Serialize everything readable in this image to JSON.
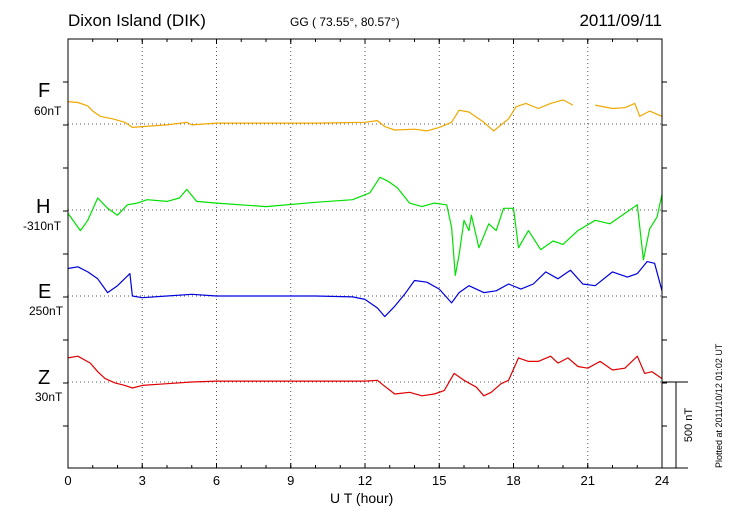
{
  "header": {
    "station": "Dixon Island (DIK)",
    "coords": "GG ( 73.55°,  80.57°)",
    "date": "2011/09/11"
  },
  "footnote": "Plotted at 2011/10/12 01:02 UT",
  "chart_data": {
    "type": "line",
    "xlabel": "U T (hour)",
    "xlim": [
      0,
      24
    ],
    "xticks": [
      "0",
      "3",
      "6",
      "9",
      "12",
      "15",
      "18",
      "21",
      "24"
    ],
    "grid": true,
    "scale_bar": {
      "label": "500 nT",
      "value_nT": 500
    },
    "series": [
      {
        "name": "F",
        "baseline": "60nT",
        "color": "#f0a800",
        "x": [
          0,
          0.4,
          0.8,
          1.0,
          1.3,
          1.8,
          2.3,
          2.6,
          3.0,
          4.0,
          4.8,
          5.0,
          6.0,
          8.0,
          10.0,
          12.0,
          12.5,
          12.8,
          13.2,
          14.0,
          14.5,
          15.0,
          15.5,
          15.8,
          16.2,
          16.5,
          16.8,
          17.2,
          17.8,
          18.1,
          18.5,
          19.0,
          19.5,
          20.0,
          20.4,
          20.9,
          21.3,
          22.0,
          22.5,
          22.9,
          23.1,
          23.5,
          24.0
        ],
        "y": [
          130,
          125,
          105,
          75,
          45,
          30,
          10,
          -20,
          -15,
          -5,
          10,
          -5,
          5,
          5,
          5,
          10,
          20,
          -15,
          -35,
          -30,
          -40,
          -20,
          10,
          80,
          70,
          40,
          10,
          -40,
          30,
          100,
          120,
          90,
          120,
          140,
          110,
          null,
          110,
          90,
          95,
          120,
          45,
          75,
          45
        ]
      },
      {
        "name": "H",
        "baseline": "-310nT",
        "color": "#00e000",
        "x": [
          0,
          0.5,
          0.8,
          1.2,
          1.6,
          2.0,
          2.4,
          2.8,
          3.2,
          4.0,
          4.5,
          4.8,
          5.2,
          6.0,
          8.0,
          10.0,
          11.5,
          12.2,
          12.6,
          12.9,
          13.3,
          13.8,
          14.3,
          14.8,
          15.3,
          15.5,
          15.65,
          15.8,
          16.0,
          16.2,
          16.3,
          16.6,
          17.0,
          17.3,
          17.6,
          18.0,
          18.2,
          18.6,
          19.1,
          19.6,
          20.0,
          20.6,
          21.3,
          21.9,
          22.5,
          23.0,
          23.25,
          23.5,
          23.8,
          24.0
        ],
        "y": [
          -20,
          -120,
          -60,
          70,
          10,
          -30,
          30,
          40,
          60,
          50,
          70,
          120,
          50,
          40,
          20,
          45,
          60,
          100,
          190,
          170,
          130,
          40,
          20,
          40,
          30,
          -100,
          -380,
          -260,
          -60,
          -120,
          -30,
          -220,
          -80,
          -120,
          10,
          10,
          -220,
          -120,
          -230,
          -180,
          -200,
          -120,
          -60,
          -80,
          -20,
          30,
          -290,
          -110,
          -40,
          90
        ]
      },
      {
        "name": "E",
        "baseline": "250nT",
        "color": "#0000dd",
        "x": [
          0,
          0.4,
          0.8,
          1.2,
          1.6,
          2.0,
          2.5,
          2.6,
          3.0,
          4.0,
          5.0,
          6.0,
          8.0,
          10.0,
          11.5,
          12.0,
          12.5,
          12.8,
          13.2,
          13.6,
          14.0,
          14.5,
          15.0,
          15.5,
          15.8,
          16.2,
          16.8,
          17.3,
          17.8,
          18.3,
          18.8,
          19.3,
          19.8,
          20.3,
          20.8,
          21.3,
          22.0,
          22.6,
          23.0,
          23.4,
          23.7,
          24.0
        ],
        "y": [
          160,
          170,
          140,
          100,
          20,
          60,
          130,
          0,
          -10,
          0,
          10,
          0,
          0,
          0,
          -5,
          -20,
          -70,
          -120,
          -60,
          10,
          90,
          80,
          40,
          -40,
          20,
          60,
          20,
          30,
          70,
          40,
          70,
          140,
          100,
          150,
          70,
          60,
          140,
          110,
          130,
          200,
          190,
          30
        ]
      },
      {
        "name": "Z",
        "baseline": "30nT",
        "color": "#e00000",
        "x": [
          0,
          0.4,
          0.9,
          1.2,
          1.5,
          1.9,
          2.3,
          2.6,
          3.0,
          4.0,
          5.0,
          6.0,
          8.0,
          10.0,
          12.0,
          12.5,
          12.8,
          13.2,
          13.8,
          14.3,
          14.8,
          15.2,
          15.6,
          16.0,
          16.5,
          16.8,
          17.1,
          17.5,
          17.8,
          18.2,
          18.6,
          19.0,
          19.5,
          19.8,
          20.2,
          20.6,
          21.0,
          21.5,
          22.0,
          22.5,
          23.0,
          23.3,
          23.6,
          24.0
        ],
        "y": [
          140,
          150,
          110,
          60,
          20,
          -5,
          -20,
          -35,
          -20,
          -10,
          0,
          5,
          5,
          5,
          5,
          10,
          -25,
          -70,
          -60,
          -80,
          -70,
          -50,
          50,
          10,
          -30,
          -80,
          -60,
          -10,
          10,
          140,
          120,
          120,
          150,
          110,
          140,
          90,
          80,
          120,
          70,
          80,
          150,
          50,
          60,
          20
        ]
      }
    ]
  }
}
